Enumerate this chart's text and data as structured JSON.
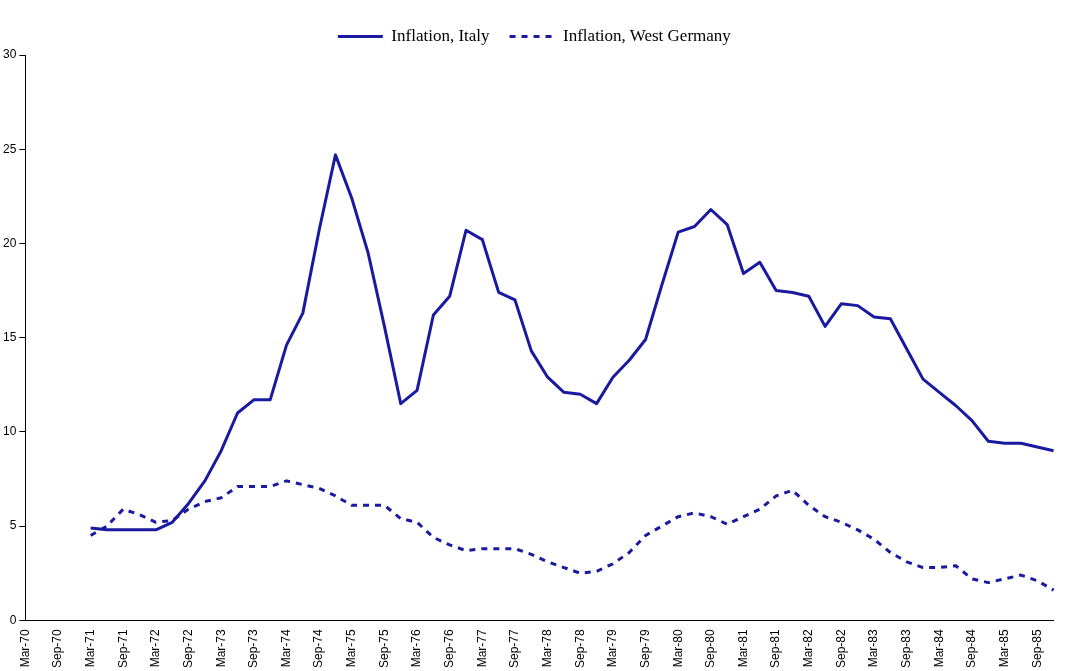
{
  "chart_data": {
    "type": "line",
    "categories": [
      "Mar-70",
      null,
      "Sep-70",
      null,
      "Mar-71",
      null,
      "Sep-71",
      null,
      "Mar-72",
      null,
      "Sep-72",
      null,
      "Mar-73",
      null,
      "Sep-73",
      null,
      "Mar-74",
      null,
      "Sep-74",
      null,
      "Mar-75",
      null,
      "Sep-75",
      null,
      "Mar-76",
      null,
      "Sep-76",
      null,
      "Mar-77",
      null,
      "Sep-77",
      null,
      "Mar-78",
      null,
      "Sep-78",
      null,
      "Mar-79",
      null,
      "Sep-79",
      null,
      "Mar-80",
      null,
      "Sep-80",
      null,
      "Mar-81",
      null,
      "Sep-81",
      null,
      "Mar-82",
      null,
      "Sep-82",
      null,
      "Mar-83",
      null,
      "Sep-83",
      null,
      "Mar-84",
      null,
      "Sep-84",
      null,
      "Mar-85",
      null,
      "Sep-85",
      null
    ],
    "series": [
      {
        "name": "Inflation, Italy",
        "color": "#1a1aa0",
        "line_style": "solid",
        "values": [
          null,
          null,
          null,
          null,
          4.9,
          4.8,
          4.8,
          4.8,
          4.8,
          5.2,
          6.2,
          7.4,
          9.0,
          11.0,
          11.7,
          11.7,
          14.6,
          16.3,
          20.7,
          24.7,
          22.4,
          19.5,
          15.6,
          11.5,
          12.2,
          16.2,
          17.2,
          20.7,
          20.2,
          17.4,
          17.0,
          14.3,
          12.9,
          12.1,
          12.0,
          11.5,
          12.9,
          13.8,
          14.9,
          17.8,
          20.6,
          20.9,
          21.8,
          21.0,
          18.4,
          19.0,
          17.5,
          17.4,
          17.2,
          15.6,
          16.8,
          16.7,
          16.1,
          16.0,
          14.4,
          12.8,
          12.1,
          11.4,
          10.6,
          9.5,
          9.4,
          9.4,
          9.2,
          9.0
        ]
      },
      {
        "name": "Inflation, West Germany",
        "color": "#1a1aa0",
        "line_style": "dashed",
        "values": [
          null,
          null,
          null,
          null,
          4.5,
          5.0,
          5.9,
          5.6,
          5.2,
          5.3,
          5.9,
          6.3,
          6.5,
          7.1,
          7.1,
          7.1,
          7.4,
          7.2,
          7.0,
          6.6,
          6.1,
          6.1,
          6.1,
          5.4,
          5.2,
          4.4,
          4.0,
          3.7,
          3.8,
          3.8,
          3.8,
          3.5,
          3.1,
          2.8,
          2.5,
          2.6,
          3.0,
          3.6,
          4.5,
          5.0,
          5.5,
          5.7,
          5.5,
          5.1,
          5.5,
          5.9,
          6.6,
          6.9,
          6.1,
          5.5,
          5.2,
          4.8,
          4.3,
          3.6,
          3.1,
          2.8,
          2.8,
          2.9,
          2.2,
          2.0,
          2.2,
          2.4,
          2.1,
          1.6
        ]
      }
    ],
    "ylim": [
      0,
      30
    ],
    "yticks": [
      0,
      5,
      10,
      15,
      20,
      25,
      30
    ],
    "grid": false,
    "legend": "top",
    "marker": "none"
  }
}
